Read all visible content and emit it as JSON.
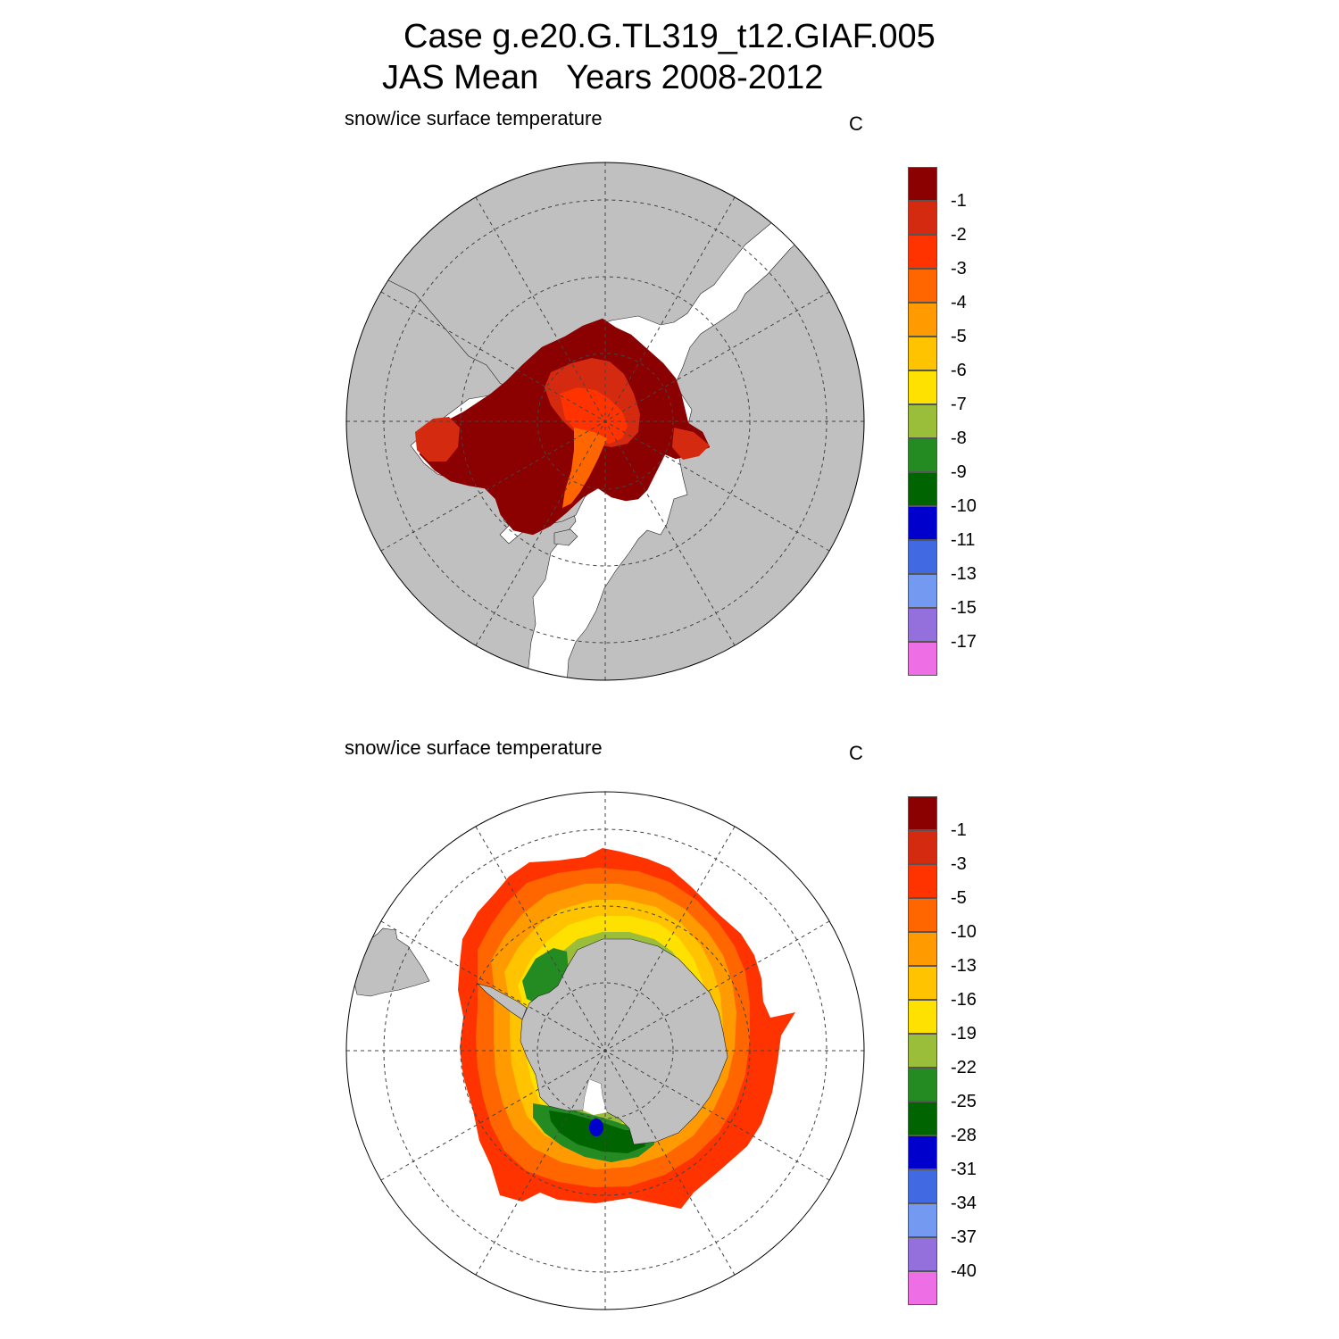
{
  "title": {
    "line1": "Case g.e20.G.TL319_t12.GIAF.005",
    "line2": "JAS Mean   Years 2008-2012"
  },
  "colors": {
    "land": "#c0c0c0",
    "ocean": "#ffffff",
    "scale": [
      "#8b0000",
      "#d42b10",
      "#ff3300",
      "#ff6600",
      "#ff9a00",
      "#ffc300",
      "#ffe100",
      "#9abd3a",
      "#238b22",
      "#006400",
      "#0000cd",
      "#4169e1",
      "#7499f0",
      "#9370db",
      "#ee6ee6"
    ]
  },
  "panels": [
    {
      "id": "north",
      "variable": "snow/ice surface temperature",
      "units": "C",
      "colorbar_labels": [
        "-1",
        "-2",
        "-3",
        "-4",
        "-5",
        "-6",
        "-7",
        "-8",
        "-9",
        "-10",
        "-11",
        "-13",
        "-15",
        "-17"
      ]
    },
    {
      "id": "south",
      "variable": "snow/ice surface temperature",
      "units": "C",
      "colorbar_labels": [
        "-1",
        "-3",
        "-5",
        "-10",
        "-13",
        "-16",
        "-19",
        "-22",
        "-25",
        "-28",
        "-31",
        "-34",
        "-37",
        "-40"
      ]
    }
  ]
}
